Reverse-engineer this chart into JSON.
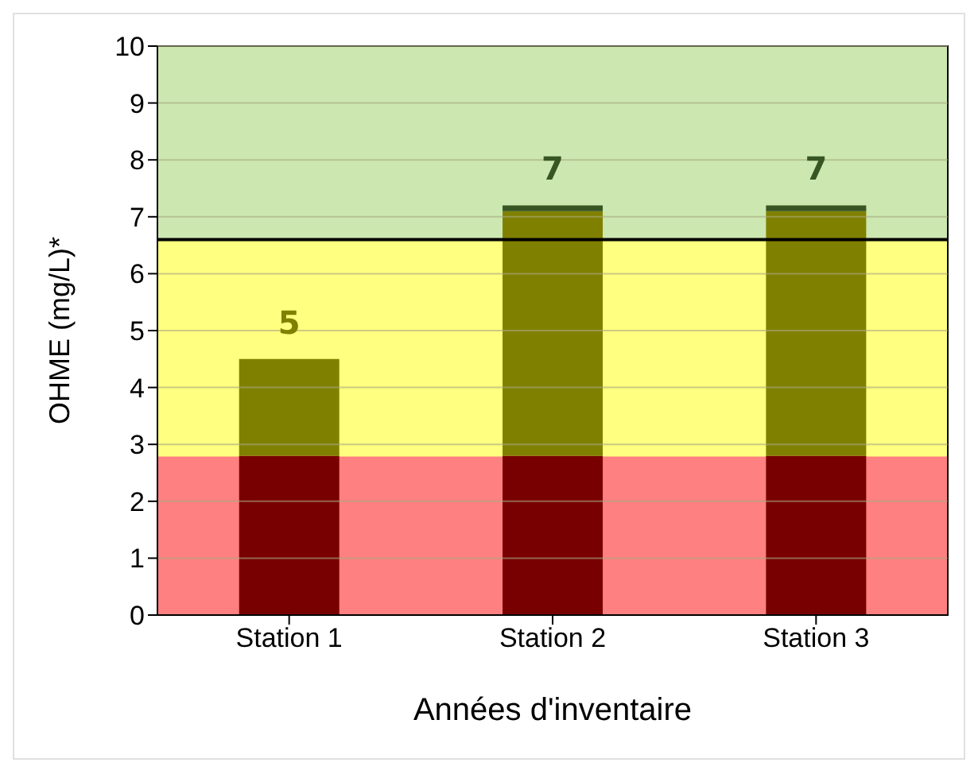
{
  "chart_data": {
    "type": "bar",
    "xlabel": "Années d'inventaire",
    "ylabel": "OHME  (mg/L)*",
    "categories": [
      "Station 1",
      "Station 2",
      "Station 3"
    ],
    "stacked": true,
    "series": [
      {
        "color": "#780000",
        "values": [
          2.8,
          2.8,
          2.8
        ]
      },
      {
        "color": "#808000",
        "values": [
          1.7,
          4.3,
          4.3
        ]
      },
      {
        "color": "#375623",
        "values": [
          0,
          0.1,
          0.1
        ]
      }
    ],
    "totals": [
      "5",
      "7",
      "7"
    ],
    "ylim": [
      0,
      10
    ],
    "yticks": [
      0,
      1,
      2,
      3,
      4,
      5,
      6,
      7,
      8,
      9,
      10
    ],
    "grid": "y",
    "bands": [
      {
        "axis": "y",
        "from": 0,
        "to": 2.8,
        "color": "#ff8080"
      },
      {
        "axis": "y",
        "from": 2.8,
        "to": 6.6,
        "color": "#ffff80"
      },
      {
        "axis": "y",
        "from": 6.6,
        "to": 10,
        "color": "#cce8b0"
      }
    ],
    "ref_lines": [
      {
        "axis": "y",
        "value": 6.6,
        "color": "#000000"
      }
    ]
  }
}
